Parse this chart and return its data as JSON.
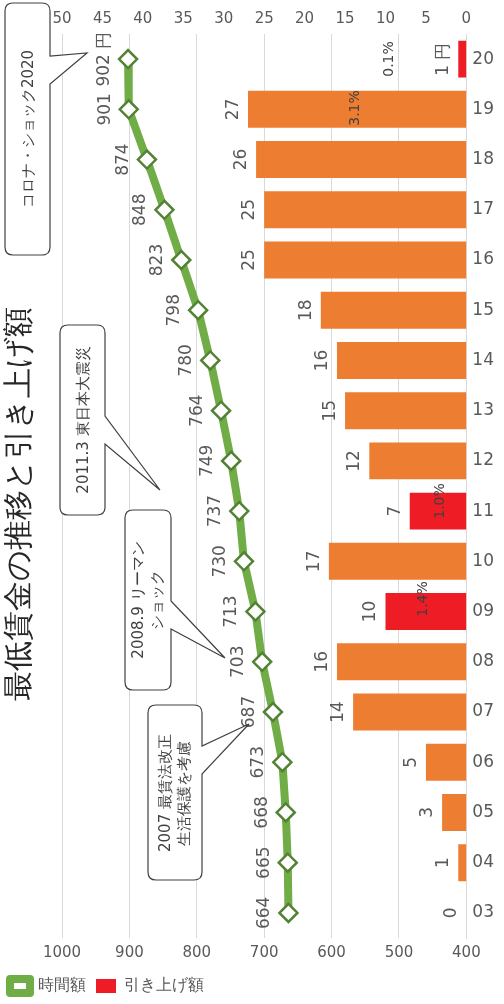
{
  "chart_data": {
    "type": "bar",
    "orientation": "horizontal",
    "title": "最低賃金の推移と引き上げ額",
    "categories": [
      "20",
      "19",
      "18",
      "17",
      "16",
      "15",
      "14",
      "13",
      "12",
      "11",
      "10",
      "09",
      "08",
      "07",
      "06",
      "05",
      "04",
      "03"
    ],
    "series": [
      {
        "name": "引き上げ額",
        "type": "bar",
        "axis": "x2",
        "colors": [
          "#ee1c25",
          "#ed7d31",
          "#ed7d31",
          "#ed7d31",
          "#ed7d31",
          "#ed7d31",
          "#ed7d31",
          "#ed7d31",
          "#ed7d31",
          "#ee1c25",
          "#ed7d31",
          "#ee1c25",
          "#ed7d31",
          "#ed7d31",
          "#ed7d31",
          "#ed7d31",
          "#ed7d31",
          "#ed7d31"
        ],
        "values": [
          1,
          27,
          26,
          25,
          25,
          18,
          16,
          15,
          12,
          7,
          17,
          10,
          16,
          14,
          5,
          3,
          1,
          0
        ],
        "value_labels": [
          "1 円",
          "27",
          "26",
          "25",
          "25",
          "18",
          "16",
          "15",
          "12",
          "7",
          "17",
          "10",
          "16",
          "14",
          "5",
          "3",
          "1",
          "0"
        ]
      },
      {
        "name": "時間額",
        "type": "line",
        "color": "#70ad47",
        "values": [
          902,
          901,
          874,
          848,
          823,
          798,
          780,
          764,
          749,
          737,
          730,
          713,
          703,
          687,
          673,
          668,
          665,
          664
        ],
        "value_labels": [
          "902 円",
          "901",
          "874",
          "848",
          "823",
          "798",
          "780",
          "764",
          "749",
          "737",
          "730",
          "713",
          "703",
          "687",
          "673",
          "668",
          "665",
          "664"
        ]
      }
    ],
    "xlim": [
      1000,
      400
    ],
    "xticks": [
      400,
      500,
      600,
      700,
      800,
      900,
      1000
    ],
    "x2lim": [
      50,
      0
    ],
    "x2ticks": [
      0,
      5,
      10,
      15,
      20,
      25,
      30,
      35,
      40,
      45,
      50
    ],
    "grid": "x",
    "legend": "bottom left",
    "marker": "diamond",
    "annotations": [
      "2007 最賃法改正生活保護を考慮",
      "2008.9 リーマンショック",
      "2011.3 東日本大震災",
      "コロナ・ショック2020",
      "1.4%",
      "1.0%",
      "3.1%",
      "0.1%"
    ]
  }
}
